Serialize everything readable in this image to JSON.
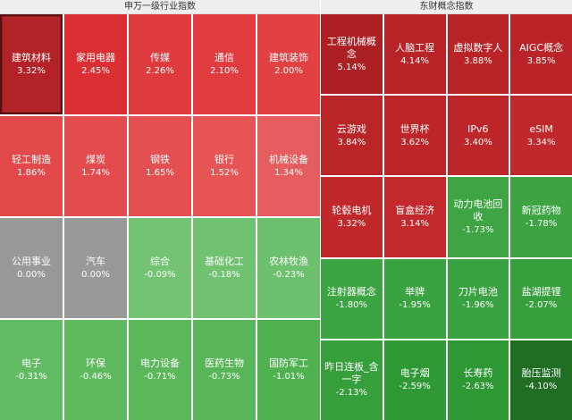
{
  "left": {
    "title": "申万一级行业指数",
    "tiles": [
      {
        "name": "建筑材料",
        "change": "3.32%",
        "color": "#b22226",
        "selected": true
      },
      {
        "name": "家用电器",
        "change": "2.45%",
        "color": "#db2f33"
      },
      {
        "name": "传媒",
        "change": "2.26%",
        "color": "#df3a3d"
      },
      {
        "name": "通信",
        "change": "2.10%",
        "color": "#e03c3f"
      },
      {
        "name": "建筑装饰",
        "change": "2.00%",
        "color": "#e24144"
      },
      {
        "name": "轻工制造",
        "change": "1.86%",
        "color": "#e3484a"
      },
      {
        "name": "煤炭",
        "change": "1.74%",
        "color": "#e34b4e"
      },
      {
        "name": "钢铁",
        "change": "1.65%",
        "color": "#e44f51"
      },
      {
        "name": "银行",
        "change": "1.52%",
        "color": "#e65456"
      },
      {
        "name": "机械设备",
        "change": "1.34%",
        "color": "#e65d5f"
      },
      {
        "name": "公用事业",
        "change": "0.00%",
        "color": "#999999"
      },
      {
        "name": "汽车",
        "change": "0.00%",
        "color": "#999999"
      },
      {
        "name": "综合",
        "change": "-0.09%",
        "color": "#73c373"
      },
      {
        "name": "基础化工",
        "change": "-0.18%",
        "color": "#70c270"
      },
      {
        "name": "农林牧渔",
        "change": "-0.23%",
        "color": "#6dc06d"
      },
      {
        "name": "电子",
        "change": "-0.31%",
        "color": "#62bb62"
      },
      {
        "name": "环保",
        "change": "-0.46%",
        "color": "#5fba5f"
      },
      {
        "name": "电力设备",
        "change": "-0.71%",
        "color": "#5ab75a"
      },
      {
        "name": "医药生物",
        "change": "-0.73%",
        "color": "#58b658"
      },
      {
        "name": "国防军工",
        "change": "-1.01%",
        "color": "#50b150"
      }
    ]
  },
  "right": {
    "title": "东财概念指数",
    "tiles": [
      {
        "name": "工程机械概念",
        "change": "5.14%",
        "color": "#ac1f23"
      },
      {
        "name": "人脑工程",
        "change": "4.14%",
        "color": "#b72326"
      },
      {
        "name": "虚拟数字人",
        "change": "3.88%",
        "color": "#b92427"
      },
      {
        "name": "AIGC概念",
        "change": "3.85%",
        "color": "#ba2428"
      },
      {
        "name": "云游戏",
        "change": "3.84%",
        "color": "#ba2528"
      },
      {
        "name": "世界杯",
        "change": "3.62%",
        "color": "#bc2629"
      },
      {
        "name": "IPv6",
        "change": "3.40%",
        "color": "#be272a"
      },
      {
        "name": "eSIM",
        "change": "3.34%",
        "color": "#c0282b"
      },
      {
        "name": "轮毂电机",
        "change": "3.32%",
        "color": "#c0282b"
      },
      {
        "name": "盲盒经济",
        "change": "3.14%",
        "color": "#c3292c"
      },
      {
        "name": "动力电池回收",
        "change": "-1.73%",
        "color": "#3fa544"
      },
      {
        "name": "新冠药物",
        "change": "-1.78%",
        "color": "#3ea443"
      },
      {
        "name": "注射器概念",
        "change": "-1.80%",
        "color": "#3da443"
      },
      {
        "name": "举牌",
        "change": "-1.95%",
        "color": "#3aa240"
      },
      {
        "name": "刀片电池",
        "change": "-1.96%",
        "color": "#3aa240"
      },
      {
        "name": "盐湖提锂",
        "change": "-2.07%",
        "color": "#37a03d"
      },
      {
        "name": "昨日连板_含一字",
        "change": "-2.13%",
        "color": "#369f3c"
      },
      {
        "name": "电子烟",
        "change": "-2.59%",
        "color": "#2f9a35"
      },
      {
        "name": "长寿药",
        "change": "-2.63%",
        "color": "#2e9934"
      },
      {
        "name": "胎压监测",
        "change": "-4.10%",
        "color": "#1f6e24"
      }
    ]
  }
}
